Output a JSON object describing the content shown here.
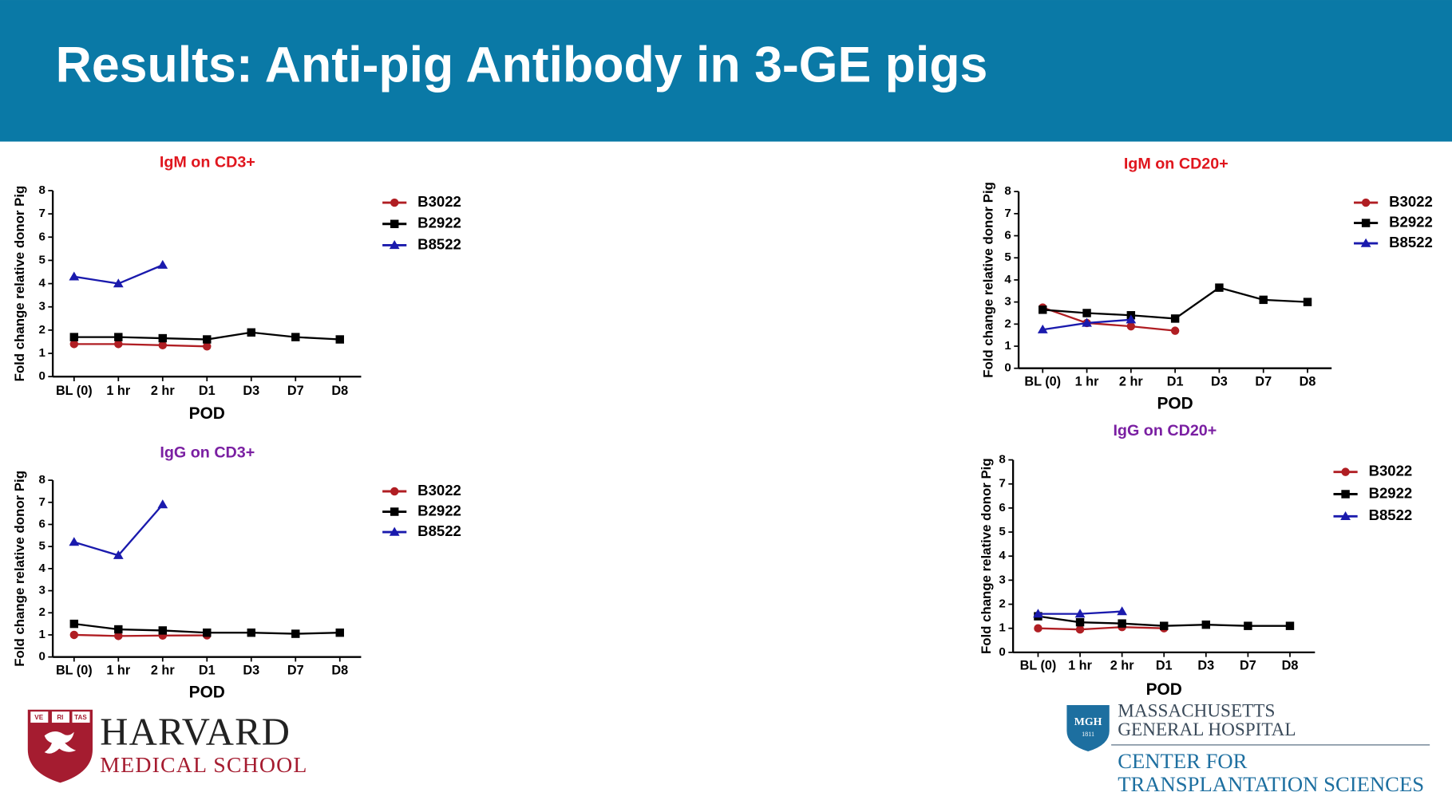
{
  "header": {
    "title": "Results: Anti-pig Antibody in 3-GE pigs"
  },
  "chart_data": [
    {
      "type": "line",
      "title": "IgM on CD3+",
      "title_color": "#e0161e",
      "x_label": "POD",
      "y_label": "Fold change relative donor Pig",
      "categories": [
        "BL (0)",
        "1 hr",
        "2 hr",
        "D1",
        "D3",
        "D7",
        "D8"
      ],
      "ylim": [
        0,
        8
      ],
      "yticks": [
        0,
        1,
        2,
        3,
        4,
        5,
        6,
        7,
        8
      ],
      "series": [
        {
          "name": "B3022",
          "color": "#b01e23",
          "marker": "circle",
          "values": [
            1.4,
            1.4,
            1.35,
            1.3,
            null,
            null,
            null
          ]
        },
        {
          "name": "B2922",
          "color": "#000000",
          "marker": "square",
          "values": [
            1.7,
            1.7,
            1.65,
            1.6,
            1.9,
            1.7,
            1.6
          ]
        },
        {
          "name": "B8522",
          "color": "#1a1aad",
          "marker": "triangle",
          "values": [
            4.3,
            4.0,
            4.8,
            null,
            null,
            null,
            null
          ]
        }
      ]
    },
    {
      "type": "line",
      "title": "IgG on CD3+",
      "title_color": "#7a1fa2",
      "x_label": "POD",
      "y_label": "Fold change relative donor Pig",
      "categories": [
        "BL (0)",
        "1 hr",
        "2 hr",
        "D1",
        "D3",
        "D7",
        "D8"
      ],
      "ylim": [
        0,
        8
      ],
      "yticks": [
        0,
        1,
        2,
        3,
        4,
        5,
        6,
        7,
        8
      ],
      "series": [
        {
          "name": "B3022",
          "color": "#b01e23",
          "marker": "circle",
          "values": [
            1.0,
            0.95,
            0.97,
            0.98,
            null,
            null,
            null
          ]
        },
        {
          "name": "B2922",
          "color": "#000000",
          "marker": "square",
          "values": [
            1.5,
            1.25,
            1.2,
            1.1,
            1.1,
            1.05,
            1.1
          ]
        },
        {
          "name": "B8522",
          "color": "#1a1aad",
          "marker": "triangle",
          "values": [
            5.2,
            4.6,
            6.9,
            null,
            null,
            null,
            null
          ]
        }
      ]
    },
    {
      "type": "line",
      "title": "IgM on CD20+",
      "title_color": "#e0161e",
      "x_label": "POD",
      "y_label": "Fold change relative donor Pig",
      "categories": [
        "BL (0)",
        "1 hr",
        "2 hr",
        "D1",
        "D3",
        "D7",
        "D8"
      ],
      "ylim": [
        0,
        8
      ],
      "yticks": [
        0,
        1,
        2,
        3,
        4,
        5,
        6,
        7,
        8
      ],
      "series": [
        {
          "name": "B3022",
          "color": "#b01e23",
          "marker": "circle",
          "values": [
            2.75,
            2.05,
            1.9,
            1.7,
            null,
            null,
            null
          ]
        },
        {
          "name": "B2922",
          "color": "#000000",
          "marker": "square",
          "values": [
            2.65,
            2.5,
            2.4,
            2.25,
            3.65,
            3.1,
            3.0
          ]
        },
        {
          "name": "B8522",
          "color": "#1a1aad",
          "marker": "triangle",
          "values": [
            1.75,
            2.05,
            2.2,
            null,
            null,
            null,
            null
          ]
        }
      ]
    },
    {
      "type": "line",
      "title": "IgG on CD20+",
      "title_color": "#7a1fa2",
      "x_label": "POD",
      "y_label": "Fold change relative donor Pig",
      "categories": [
        "BL (0)",
        "1 hr",
        "2 hr",
        "D1",
        "D3",
        "D7",
        "D8"
      ],
      "ylim": [
        0,
        8
      ],
      "yticks": [
        0,
        1,
        2,
        3,
        4,
        5,
        6,
        7,
        8
      ],
      "series": [
        {
          "name": "B3022",
          "color": "#b01e23",
          "marker": "circle",
          "values": [
            1.0,
            0.95,
            1.05,
            1.0,
            null,
            null,
            null
          ]
        },
        {
          "name": "B2922",
          "color": "#000000",
          "marker": "square",
          "values": [
            1.5,
            1.25,
            1.2,
            1.1,
            1.15,
            1.1,
            1.1
          ]
        },
        {
          "name": "B8522",
          "color": "#1a1aad",
          "marker": "triangle",
          "values": [
            1.6,
            1.6,
            1.7,
            null,
            null,
            null,
            null
          ]
        }
      ]
    }
  ],
  "logos": {
    "harvard": {
      "name": "HARVARD",
      "school": "MEDICAL SCHOOL",
      "motto": [
        "VE",
        "RI",
        "TAS"
      ]
    },
    "mgh": {
      "badge": "MGH",
      "year": "1811",
      "line1": "MASSACHUSETTS",
      "line2": "GENERAL HOSPITAL",
      "center1": "CENTER FOR",
      "center2": "TRANSPLANTATION SCIENCES"
    }
  }
}
